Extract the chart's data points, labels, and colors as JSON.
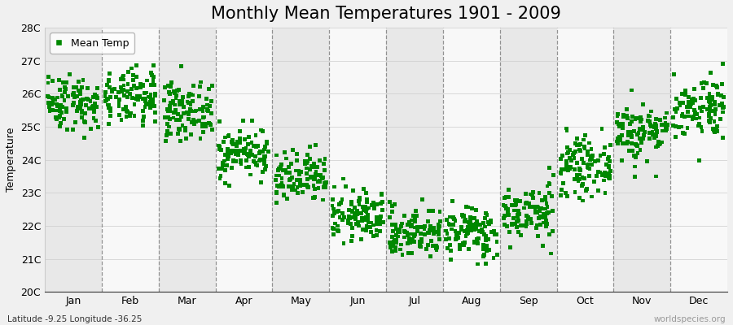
{
  "title": "Monthly Mean Temperatures 1901 - 2009",
  "ylabel": "Temperature",
  "subtitle_left": "Latitude -9.25 Longitude -36.25",
  "subtitle_right": "worldspecies.org",
  "legend_label": "Mean Temp",
  "marker_color": "#008800",
  "bg_color": "#f0f0f0",
  "plot_bg": "#f0f0f0",
  "band_colors": [
    "#e8e8e8",
    "#f8f8f8"
  ],
  "ylim": [
    20,
    28
  ],
  "ytick_labels": [
    "20C",
    "21C",
    "22C",
    "23C",
    "24C",
    "25C",
    "26C",
    "27C",
    "28C"
  ],
  "ytick_values": [
    20,
    21,
    22,
    23,
    24,
    25,
    26,
    27,
    28
  ],
  "months": [
    "Jan",
    "Feb",
    "Mar",
    "Apr",
    "May",
    "Jun",
    "Jul",
    "Aug",
    "Sep",
    "Oct",
    "Nov",
    "Dec"
  ],
  "monthly_mean": [
    25.75,
    25.85,
    25.5,
    24.2,
    23.4,
    22.3,
    21.8,
    21.8,
    22.4,
    23.8,
    24.85,
    25.6
  ],
  "monthly_std": [
    0.42,
    0.42,
    0.42,
    0.38,
    0.4,
    0.38,
    0.38,
    0.4,
    0.42,
    0.42,
    0.45,
    0.48
  ],
  "n_years": 109,
  "seed": 42,
  "title_fontsize": 15,
  "axis_fontsize": 9,
  "tick_fontsize": 9,
  "marker_size": 3.5
}
